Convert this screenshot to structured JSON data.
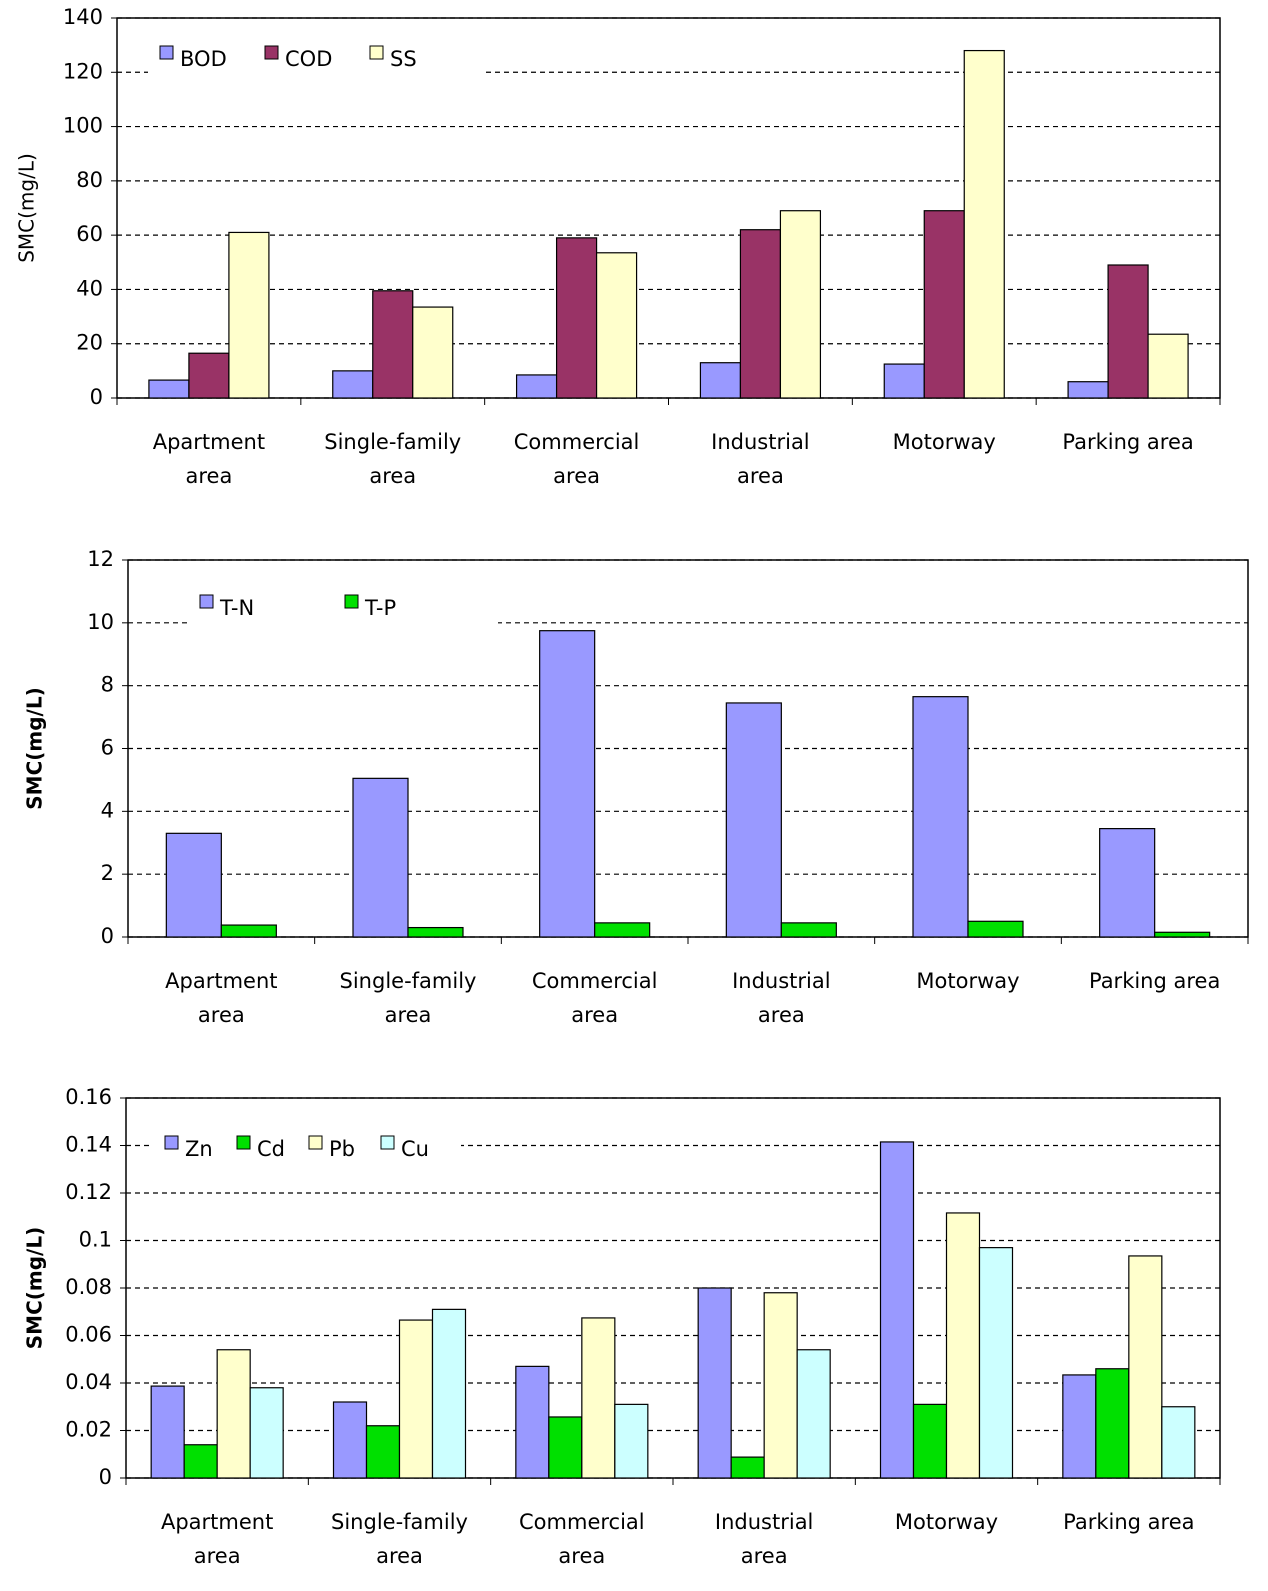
{
  "chart_data": [
    {
      "type": "bar",
      "ylabel": "SMC(mg/L)",
      "categories": [
        "Apartment\narea",
        "Single-family\narea",
        "Commercial\narea",
        "Industrial\narea",
        "Motorway",
        "Parking area"
      ],
      "series": [
        {
          "name": "BOD",
          "color": "#9999ff",
          "values": [
            6.6,
            10,
            8.5,
            13,
            12.5,
            6
          ]
        },
        {
          "name": "COD",
          "color": "#993366",
          "values": [
            16.5,
            39.5,
            59,
            62,
            69,
            49
          ]
        },
        {
          "name": "SS",
          "color": "#ffffcc",
          "values": [
            61,
            33.5,
            53.5,
            69,
            128,
            23.5
          ]
        }
      ],
      "ylim": [
        0,
        140
      ],
      "yticks": [
        0,
        20,
        40,
        60,
        80,
        100,
        120,
        140
      ],
      "grid": true
    },
    {
      "type": "bar",
      "ylabel": "SMC(mg/L)",
      "categories": [
        "Apartment\narea",
        "Single-family\narea",
        "Commercial\narea",
        "Industrial\narea",
        "Motorway",
        "Parking area"
      ],
      "series": [
        {
          "name": "T-N",
          "color": "#9999ff",
          "values": [
            3.3,
            5.05,
            9.75,
            7.45,
            7.65,
            3.45
          ]
        },
        {
          "name": "T-P",
          "color": "#00e000",
          "values": [
            0.38,
            0.3,
            0.45,
            0.45,
            0.5,
            0.15
          ]
        }
      ],
      "ylim": [
        0,
        12
      ],
      "yticks": [
        0,
        2,
        4,
        6,
        8,
        10,
        12
      ],
      "grid": true
    },
    {
      "type": "bar",
      "ylabel": "SMC(mg/L)",
      "categories": [
        "Apartment\narea",
        "Single-family\narea",
        "Commercial\narea",
        "Industrial\narea",
        "Motorway",
        "Parking area"
      ],
      "series": [
        {
          "name": "Zn",
          "color": "#9999ff",
          "values": [
            0.0387,
            0.032,
            0.047,
            0.08,
            0.1415,
            0.0434
          ]
        },
        {
          "name": "Cd",
          "color": "#00e000",
          "values": [
            0.014,
            0.022,
            0.0257,
            0.0088,
            0.031,
            0.046
          ]
        },
        {
          "name": "Pb",
          "color": "#ffffcc",
          "values": [
            0.054,
            0.0665,
            0.0674,
            0.078,
            0.1116,
            0.0935
          ]
        },
        {
          "name": "Cu",
          "color": "#ccffff",
          "values": [
            0.038,
            0.071,
            0.031,
            0.054,
            0.097,
            0.03
          ]
        }
      ],
      "ylim": [
        0,
        0.16
      ],
      "yticks": [
        0,
        0.02,
        0.04,
        0.06,
        0.08,
        0.1,
        0.12,
        0.14,
        0.16
      ],
      "grid": true
    }
  ]
}
